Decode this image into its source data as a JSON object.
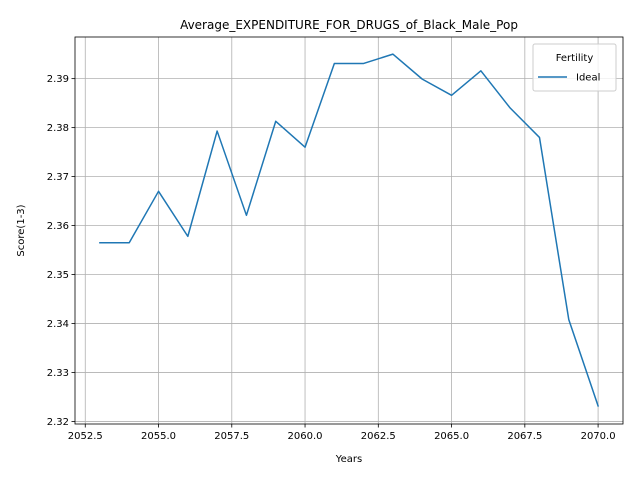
{
  "chart_data": {
    "type": "line",
    "title": "Average_EXPENDITURE_FOR_DRUGS_of_Black_Male_Pop",
    "xlabel": "Years",
    "ylabel": "Score(1-3)",
    "xlim": [
      2052.15,
      2070.85
    ],
    "ylim": [
      2.3195,
      2.3985
    ],
    "grid": true,
    "legend_position": "top-right",
    "legend_title": "Fertility",
    "x_ticks": [
      2052.5,
      2055.0,
      2057.5,
      2060.0,
      2062.5,
      2065.0,
      2067.5,
      2070.0
    ],
    "x_tick_labels": [
      "2052.5",
      "2055.0",
      "2057.5",
      "2060.0",
      "2062.5",
      "2065.0",
      "2067.5",
      "2070.0"
    ],
    "y_ticks": [
      2.32,
      2.33,
      2.34,
      2.35,
      2.36,
      2.37,
      2.38,
      2.39
    ],
    "y_tick_labels": [
      "2.32",
      "2.33",
      "2.34",
      "2.35",
      "2.36",
      "2.37",
      "2.38",
      "2.39"
    ],
    "series": [
      {
        "name": "Ideal",
        "color": "#1f77b4",
        "x": [
          2053,
          2054,
          2055,
          2056,
          2057,
          2058,
          2059,
          2060,
          2061,
          2062,
          2063,
          2064,
          2065,
          2066,
          2067,
          2068,
          2069,
          2070
        ],
        "y": [
          2.3565,
          2.3565,
          2.367,
          2.3578,
          2.3793,
          2.3621,
          2.3813,
          2.376,
          2.3931,
          2.3931,
          2.395,
          2.3899,
          2.3866,
          2.3916,
          2.384,
          2.378,
          2.3408,
          2.3232
        ]
      }
    ]
  }
}
